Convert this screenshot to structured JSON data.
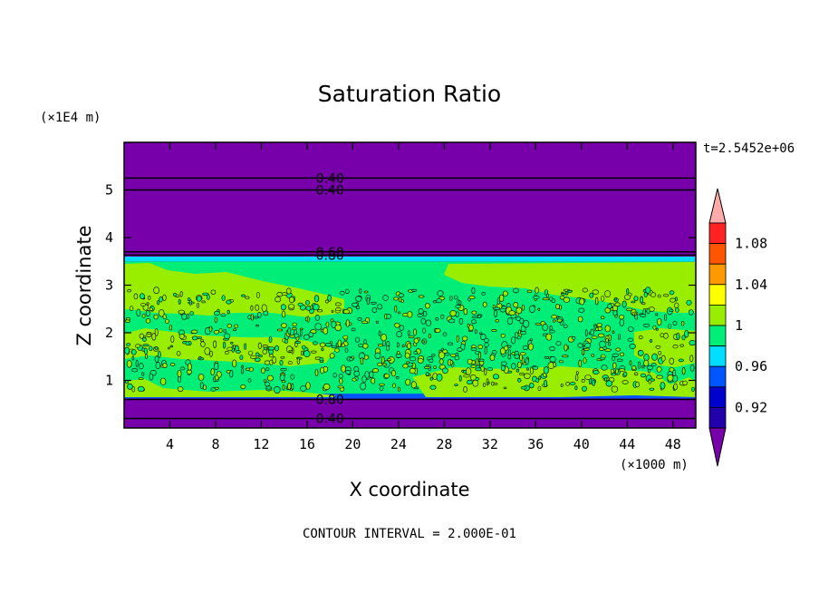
{
  "chart_data": {
    "type": "heatmap",
    "title": "Saturation Ratio",
    "xlabel": "X coordinate",
    "ylabel": "Z coordinate",
    "x_unit": "(×1000 m)",
    "y_unit": "(×1E4 m)",
    "time_label": "t=2.5452e+06",
    "footer": "CONTOUR INTERVAL = 2.000E-01",
    "xlim": [
      0,
      50
    ],
    "ylim": [
      0,
      6
    ],
    "x_ticks": [
      4,
      8,
      12,
      16,
      20,
      24,
      28,
      32,
      36,
      40,
      44,
      48
    ],
    "y_ticks": [
      1,
      2,
      3,
      4,
      5
    ],
    "contour_lines": [
      {
        "z": 5.25,
        "label": "0.40"
      },
      {
        "z": 5.0,
        "label": "0.40"
      },
      {
        "z": 3.7,
        "label": "0.60"
      },
      {
        "z": 3.63,
        "label": "0.80"
      },
      {
        "z": 0.6,
        "label": "0.80"
      },
      {
        "z": 0.2,
        "label": "0.40"
      }
    ],
    "colorbar": {
      "labeled_levels": [
        "1.08",
        "1.04",
        "1",
        "0.96",
        "0.92"
      ],
      "bins": [
        {
          "color": "#ffaaaa",
          "range": "> 1.10"
        },
        {
          "color": "#ff2222",
          "range": "1.08 – 1.10"
        },
        {
          "color": "#ff5500",
          "range": "1.06 – 1.08"
        },
        {
          "color": "#ff9900",
          "range": "1.04 – 1.06"
        },
        {
          "color": "#ffff00",
          "range": "1.02 – 1.04"
        },
        {
          "color": "#99ee00",
          "range": "1.00 – 1.02"
        },
        {
          "color": "#00ee77",
          "range": "0.98 – 1.00"
        },
        {
          "color": "#00ddff",
          "range": "0.96 – 0.98"
        },
        {
          "color": "#0055ff",
          "range": "0.94 – 0.96"
        },
        {
          "color": "#0000cc",
          "range": "0.92 – 0.94"
        },
        {
          "color": "#2200aa",
          "range": "0.90 – 0.92"
        },
        {
          "color": "#7700aa",
          "range": "< 0.90"
        }
      ]
    },
    "regions": [
      {
        "z_range": [
          0,
          0.62
        ],
        "value": "< 0.90",
        "color": "#7700aa"
      },
      {
        "z_range": [
          0.62,
          0.72
        ],
        "value": "0.94 – 0.98",
        "color": "#0055ff"
      },
      {
        "z_range": [
          0.72,
          3.5
        ],
        "value": "0.98 – 1.02",
        "color": "#00ee77"
      },
      {
        "z_range": [
          3.5,
          3.6
        ],
        "value": "0.94 – 0.98",
        "color": "#00ddff"
      },
      {
        "z_range": [
          3.6,
          6
        ],
        "value": "< 0.90",
        "color": "#7700aa"
      }
    ]
  }
}
